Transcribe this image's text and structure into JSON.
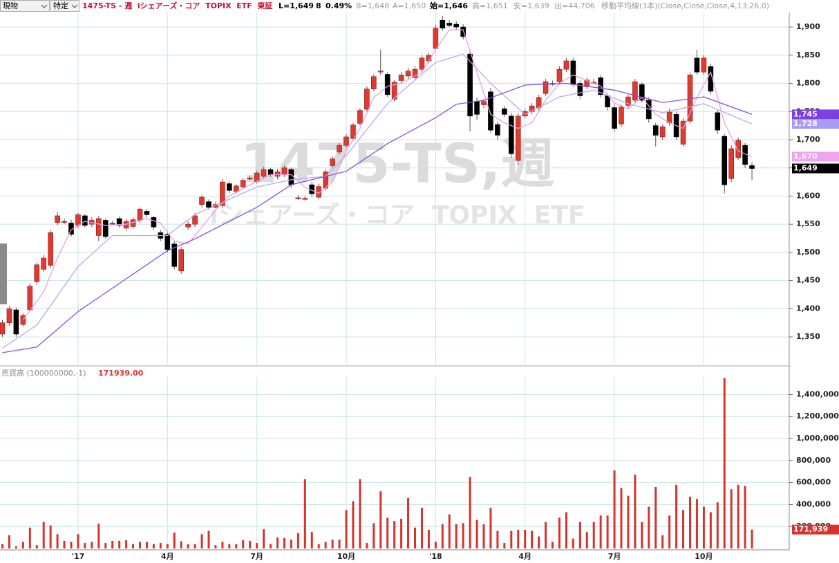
{
  "header": {
    "market": "現物",
    "account": "特定",
    "title": "1475-TS - 週  iシェアーズ・コア  TOPIX  ETF  東証",
    "last": "L=1,649",
    "change": "8",
    "change_pct": "0.49%",
    "bid": "B=1,648",
    "ask": "A=1,650",
    "open": "始=1,646",
    "high": "高=1,651",
    "low": "安=1,639",
    "volume": "出=44,706",
    "indicator": "移動平均線(3本)(Close,Close,Close,4,13,26,0)"
  },
  "chart_data": [
    {
      "type": "candlestick",
      "title": "1475-TS,週",
      "subtitle": "iシェアーズ・コア  TOPIX  ETF",
      "open": [
        1355,
        1375,
        1398,
        1372,
        1398,
        1448,
        1470,
        1477,
        1553,
        1555,
        1552,
        1548,
        1565,
        1550,
        1530,
        1557,
        1552,
        1560,
        1543,
        1546,
        1557,
        1573,
        1562,
        1535,
        1532,
        1515,
        1467,
        1545,
        1550,
        1585,
        1590,
        1580,
        1583,
        1622,
        1608,
        1616,
        1632,
        1626,
        1635,
        1647,
        1635,
        1638,
        1647,
        1597,
        1596,
        1620,
        1598,
        1614,
        1654,
        1678,
        1690,
        1702,
        1729,
        1754,
        1790,
        1822,
        1816,
        1772,
        1805,
        1813,
        1810,
        1825,
        1840,
        1862,
        1912,
        1907,
        1905,
        1900,
        1852,
        1768,
        1762,
        1785,
        1727,
        1755,
        1742,
        1663,
        1742,
        1750,
        1757,
        1782,
        1800,
        1803,
        1825,
        1840,
        1800,
        1794,
        1802,
        1810,
        1778,
        1757,
        1728,
        1761,
        1770,
        1798,
        1770,
        1725,
        1705,
        1730,
        1745,
        1692,
        1733,
        1845,
        1820,
        1830,
        1748,
        1706,
        1631,
        1668,
        1690,
        1654
      ],
      "high": [
        1380,
        1405,
        1402,
        1392,
        1445,
        1482,
        1495,
        1540,
        1572,
        1560,
        1558,
        1570,
        1568,
        1562,
        1565,
        1560,
        1556,
        1563,
        1560,
        1562,
        1580,
        1577,
        1565,
        1540,
        1535,
        1520,
        1510,
        1555,
        1570,
        1602,
        1594,
        1590,
        1630,
        1626,
        1622,
        1632,
        1636,
        1645,
        1652,
        1650,
        1648,
        1654,
        1650,
        1602,
        1600,
        1625,
        1622,
        1648,
        1670,
        1694,
        1710,
        1730,
        1756,
        1795,
        1816,
        1860,
        1820,
        1806,
        1820,
        1828,
        1830,
        1850,
        1855,
        1904,
        1920,
        1912,
        1910,
        1905,
        1860,
        1775,
        1772,
        1792,
        1732,
        1760,
        1748,
        1748,
        1755,
        1765,
        1780,
        1808,
        1805,
        1830,
        1845,
        1845,
        1805,
        1810,
        1808,
        1815,
        1782,
        1762,
        1762,
        1780,
        1808,
        1802,
        1775,
        1730,
        1727,
        1755,
        1750,
        1738,
        1820,
        1860,
        1850,
        1835,
        1752,
        1710,
        1690,
        1704,
        1694,
        1660
      ],
      "low": [
        1350,
        1370,
        1350,
        1368,
        1395,
        1443,
        1465,
        1472,
        1548,
        1550,
        1528,
        1543,
        1544,
        1545,
        1520,
        1524,
        1548,
        1544,
        1538,
        1542,
        1552,
        1562,
        1540,
        1520,
        1500,
        1470,
        1462,
        1540,
        1545,
        1580,
        1576,
        1578,
        1578,
        1605,
        1604,
        1612,
        1628,
        1622,
        1630,
        1634,
        1630,
        1634,
        1615,
        1593,
        1592,
        1598,
        1594,
        1610,
        1650,
        1674,
        1686,
        1698,
        1725,
        1750,
        1786,
        1815,
        1776,
        1768,
        1800,
        1808,
        1805,
        1820,
        1836,
        1858,
        1893,
        1900,
        1895,
        1878,
        1715,
        1735,
        1756,
        1712,
        1700,
        1740,
        1668,
        1655,
        1738,
        1745,
        1752,
        1778,
        1796,
        1798,
        1820,
        1794,
        1772,
        1790,
        1798,
        1775,
        1752,
        1714,
        1722,
        1755,
        1765,
        1766,
        1730,
        1688,
        1700,
        1725,
        1700,
        1688,
        1728,
        1815,
        1815,
        1780,
        1710,
        1605,
        1625,
        1664,
        1650,
        1628
      ],
      "close": [
        1375,
        1400,
        1355,
        1388,
        1440,
        1478,
        1490,
        1535,
        1565,
        1555,
        1532,
        1567,
        1548,
        1557,
        1560,
        1528,
        1552,
        1548,
        1555,
        1558,
        1577,
        1567,
        1545,
        1525,
        1505,
        1475,
        1505,
        1550,
        1565,
        1598,
        1580,
        1585,
        1625,
        1610,
        1618,
        1628,
        1632,
        1641,
        1647,
        1638,
        1643,
        1650,
        1620,
        1597,
        1596,
        1604,
        1617,
        1643,
        1666,
        1690,
        1705,
        1726,
        1752,
        1790,
        1812,
        1822,
        1780,
        1802,
        1815,
        1822,
        1825,
        1845,
        1850,
        1898,
        1898,
        1903,
        1900,
        1883,
        1742,
        1745,
        1768,
        1717,
        1708,
        1745,
        1675,
        1742,
        1750,
        1760,
        1775,
        1803,
        1800,
        1825,
        1840,
        1798,
        1778,
        1806,
        1802,
        1780,
        1758,
        1720,
        1758,
        1776,
        1803,
        1770,
        1737,
        1708,
        1723,
        1749,
        1705,
        1733,
        1815,
        1820,
        1845,
        1786,
        1717,
        1620,
        1684,
        1699,
        1656,
        1649
      ],
      "up_color": "#e03a2f",
      "down_color": "#000000",
      "series": [
        {
          "color": "#e99ee6",
          "x": [
            3,
            6,
            8,
            10,
            12,
            15,
            18,
            21,
            23,
            25,
            27,
            29,
            31,
            33,
            36,
            39,
            42,
            44,
            46,
            48,
            50,
            52,
            54,
            56,
            58,
            61,
            63,
            65,
            67,
            69,
            71,
            73,
            75,
            77,
            79,
            81,
            83,
            85,
            87,
            89,
            91,
            93,
            95,
            97,
            99,
            101,
            103,
            105,
            107,
            109
          ],
          "values": [
            1380,
            1430,
            1490,
            1540,
            1555,
            1548,
            1550,
            1560,
            1552,
            1520,
            1515,
            1545,
            1575,
            1600,
            1620,
            1638,
            1638,
            1615,
            1605,
            1625,
            1680,
            1720,
            1775,
            1795,
            1800,
            1820,
            1860,
            1895,
            1895,
            1820,
            1745,
            1730,
            1720,
            1730,
            1770,
            1800,
            1815,
            1805,
            1795,
            1765,
            1755,
            1775,
            1745,
            1730,
            1720,
            1775,
            1820,
            1730,
            1680,
            1670
          ]
        },
        {
          "color": "#b3aaf2",
          "x": [
            0,
            5,
            11,
            16,
            24,
            28,
            37,
            42,
            47,
            50,
            56,
            63,
            67,
            71,
            76,
            81,
            86,
            91,
            96,
            102,
            109
          ],
          "values": [
            1330,
            1371,
            1475,
            1530,
            1530,
            1567,
            1616,
            1629,
            1635,
            1672,
            1764,
            1837,
            1852,
            1800,
            1745,
            1776,
            1788,
            1764,
            1748,
            1764,
            1728
          ]
        },
        {
          "color": "#8a4fe0",
          "x": [
            0,
            5,
            11,
            24,
            28,
            37,
            42,
            50,
            56,
            63,
            66,
            70,
            76,
            82,
            89,
            96,
            102,
            109
          ],
          "values": [
            1322,
            1332,
            1395,
            1503,
            1524,
            1580,
            1620,
            1644,
            1693,
            1739,
            1763,
            1770,
            1797,
            1800,
            1788,
            1766,
            1776,
            1745
          ]
        }
      ],
      "last_labels": [
        {
          "value": 1745,
          "label": "1,745",
          "color": "#7b3fe4"
        },
        {
          "value": 1728,
          "label": "1,728",
          "color": "#a99cf7"
        },
        {
          "value": 1670,
          "label": "1,670",
          "color": "#f0a3ee"
        },
        {
          "value": 1649,
          "label": "1,649",
          "color": "#000000"
        }
      ],
      "ylim": [
        1301,
        1948
      ],
      "yticks": [
        {
          "value": 1350,
          "label": "1,350"
        },
        {
          "value": 1400,
          "label": "1,400"
        },
        {
          "value": 1450,
          "label": "1,450"
        },
        {
          "value": 1500,
          "label": "1,500"
        },
        {
          "value": 1550,
          "label": "1,550"
        },
        {
          "value": 1600,
          "label": "1,600"
        },
        {
          "value": 1650,
          "label": "1,650"
        },
        {
          "value": 1700,
          "label": "1,700"
        },
        {
          "value": 1750,
          "label": "1,750"
        },
        {
          "value": 1800,
          "label": "1,800"
        },
        {
          "value": 1850,
          "label": "1,850"
        },
        {
          "value": 1900,
          "label": "1,900"
        }
      ],
      "grid": true
    },
    {
      "type": "bar",
      "title": "売買高 (100000000,-1)",
      "subtitle": "171939.00",
      "categories": [
        null,
        null,
        null,
        null,
        null,
        null,
        null,
        null,
        null,
        null,
        null,
        "'17",
        null,
        null,
        null,
        null,
        null,
        null,
        null,
        null,
        null,
        null,
        null,
        null,
        "4月",
        null,
        null,
        null,
        null,
        null,
        null,
        null,
        null,
        null,
        null,
        null,
        null,
        "7月",
        null,
        null,
        null,
        null,
        null,
        null,
        null,
        null,
        null,
        null,
        null,
        null,
        "10月",
        null,
        null,
        null,
        null,
        null,
        null,
        null,
        null,
        null,
        null,
        null,
        null,
        "'18",
        null,
        null,
        null,
        null,
        null,
        null,
        null,
        null,
        null,
        null,
        null,
        null,
        "4月",
        null,
        null,
        null,
        null,
        null,
        null,
        null,
        null,
        null,
        null,
        null,
        null,
        "7月",
        null,
        null,
        null,
        null,
        null,
        null,
        null,
        null,
        null,
        null,
        null,
        null,
        "10月",
        null,
        null,
        null,
        null,
        null,
        null,
        null
      ],
      "values": [
        40000,
        120000,
        20000,
        60000,
        190000,
        30000,
        240000,
        210000,
        130000,
        70000,
        60000,
        130000,
        50000,
        60000,
        225000,
        50000,
        70000,
        70000,
        75000,
        40000,
        60000,
        60000,
        40000,
        50000,
        40000,
        145000,
        65000,
        40000,
        40000,
        130000,
        160000,
        30000,
        60000,
        40000,
        40000,
        75000,
        70000,
        50000,
        175000,
        40000,
        100000,
        95000,
        80000,
        140000,
        630000,
        150000,
        40000,
        60000,
        80000,
        80000,
        350000,
        430000,
        630000,
        50000,
        230000,
        520000,
        280000,
        250000,
        270000,
        460000,
        190000,
        370000,
        170000,
        60000,
        220000,
        310000,
        220000,
        230000,
        650000,
        260000,
        220000,
        370000,
        160000,
        50000,
        160000,
        170000,
        170000,
        160000,
        110000,
        240000,
        60000,
        280000,
        330000,
        90000,
        240000,
        150000,
        240000,
        300000,
        300000,
        710000,
        550000,
        480000,
        670000,
        240000,
        380000,
        560000,
        120000,
        300000,
        580000,
        350000,
        470000,
        450000,
        380000,
        330000,
        420000,
        1550000,
        540000,
        580000,
        570000,
        171939
      ],
      "color": "#d7322b",
      "last_labels": [
        {
          "value": 171939,
          "label": "171,939",
          "color": "#d7322b"
        }
      ],
      "ylim": [
        0,
        1560000
      ],
      "yticks": [
        {
          "value": 200000,
          "label": "200,000"
        },
        {
          "value": 400000,
          "label": "400,000"
        },
        {
          "value": 600000,
          "label": "600,000"
        },
        {
          "value": 800000,
          "label": "800,000"
        },
        {
          "value": 1000000,
          "label": "1,000,000"
        },
        {
          "value": 1200000,
          "label": "1,200,000"
        },
        {
          "value": 1400000,
          "label": "1,400,000"
        }
      ],
      "grid": true
    }
  ]
}
